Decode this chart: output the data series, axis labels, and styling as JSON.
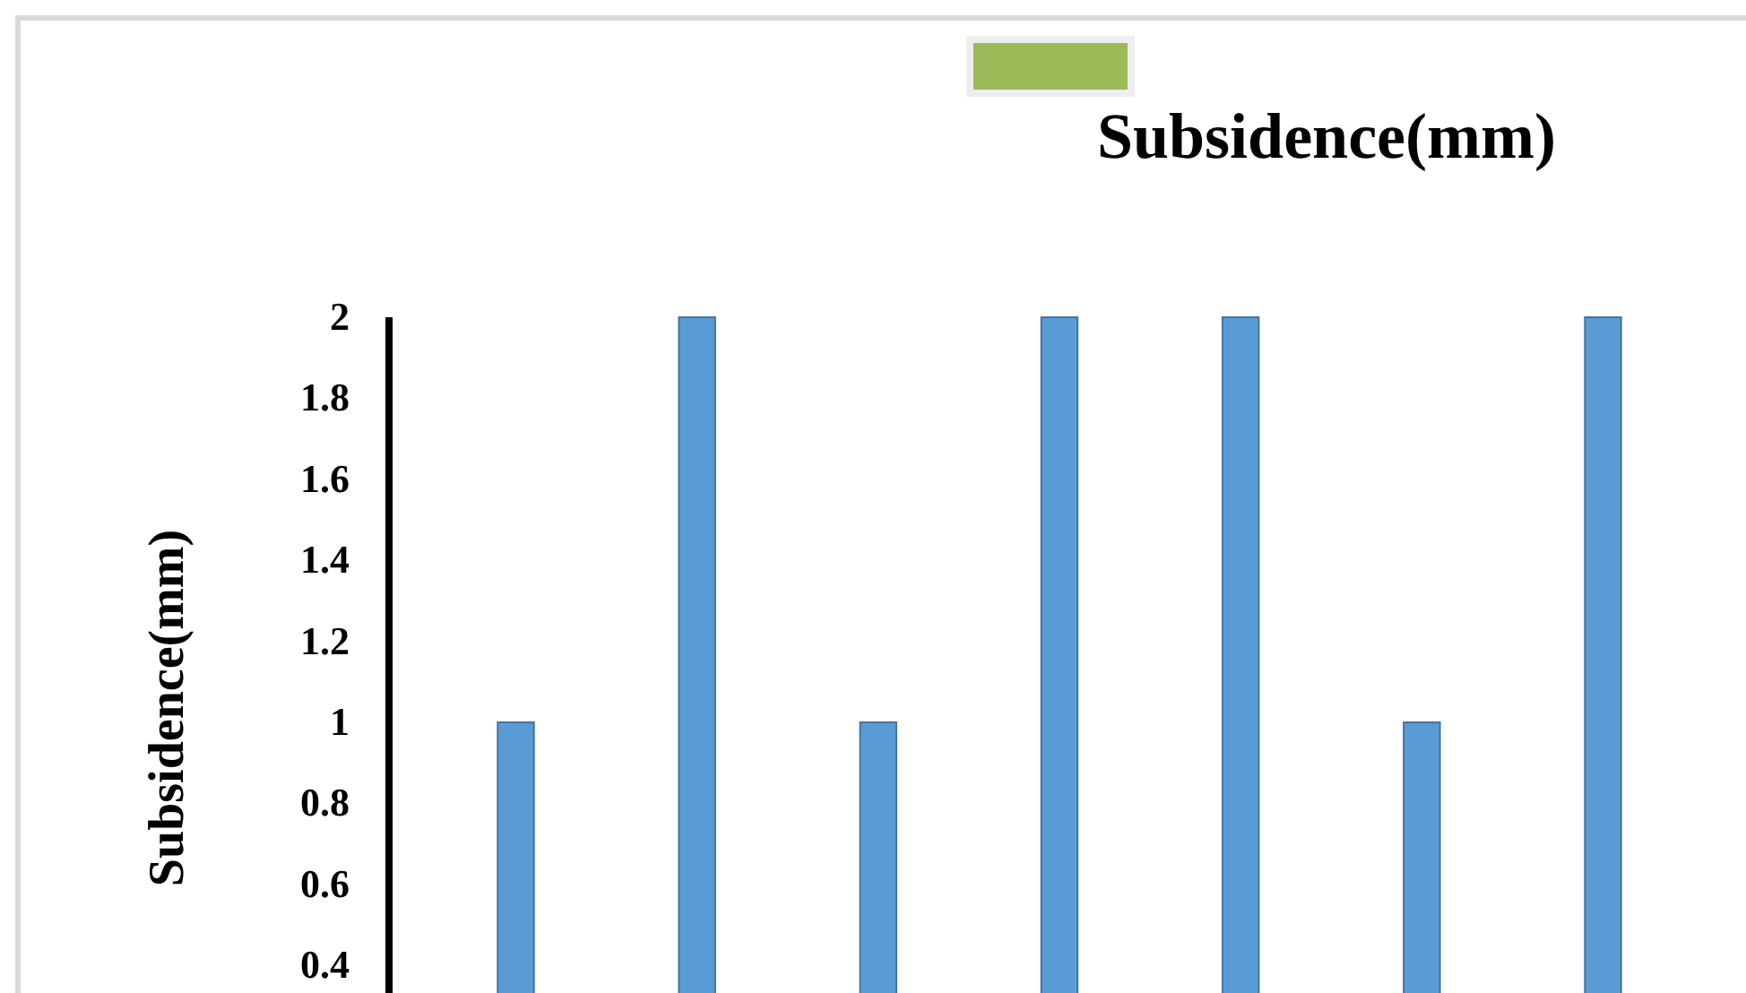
{
  "chart_data": {
    "type": "bar",
    "title": "Subsidence(mm)",
    "ylabel": "Subsidence(mm)",
    "categories": [
      null,
      null,
      null,
      null,
      null,
      null,
      null
    ],
    "series": [
      {
        "color": "#5b9bd5",
        "values": [
          1,
          2,
          1,
          2,
          2,
          1,
          2
        ]
      }
    ],
    "ylim": [
      0,
      2
    ],
    "yticks": [
      0.4,
      0.6,
      0.8,
      1,
      1.2,
      1.4,
      1.6,
      1.8,
      2
    ],
    "tick_labels": "y",
    "grid": false
  }
}
